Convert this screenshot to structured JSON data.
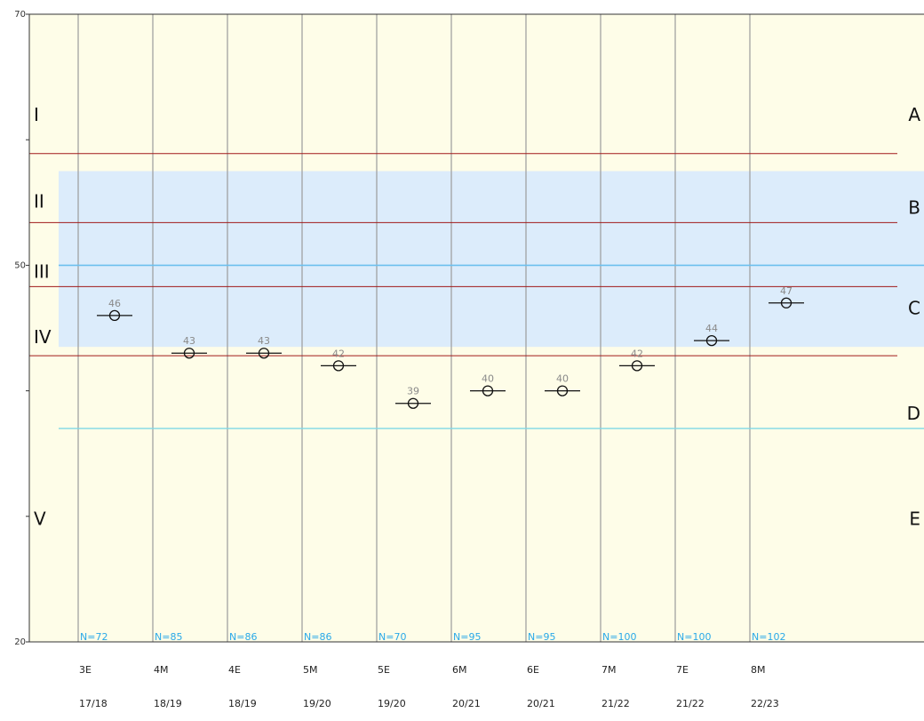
{
  "chart_data": {
    "type": "scatter",
    "title": "",
    "xlabel": "",
    "ylabel": "",
    "ylim": [
      20,
      70
    ],
    "y_ticks": [
      20,
      50,
      70
    ],
    "grid": "vertical lines between categories",
    "categories": [
      {
        "grade": "3E",
        "year": "17/18",
        "n": "N=72"
      },
      {
        "grade": "4M",
        "year": "18/19",
        "n": "N=85"
      },
      {
        "grade": "4E",
        "year": "18/19",
        "n": "N=86"
      },
      {
        "grade": "5M",
        "year": "19/20",
        "n": "N=86"
      },
      {
        "grade": "5E",
        "year": "19/20",
        "n": "N=70"
      },
      {
        "grade": "6M",
        "year": "20/21",
        "n": "N=95"
      },
      {
        "grade": "6E",
        "year": "20/21",
        "n": "N=95"
      },
      {
        "grade": "7M",
        "year": "21/22",
        "n": "N=100"
      },
      {
        "grade": "7E",
        "year": "21/22",
        "n": "N=100"
      },
      {
        "grade": "8M",
        "year": "22/23",
        "n": "N=102"
      }
    ],
    "values": [
      46,
      43,
      43,
      42,
      39,
      40,
      40,
      42,
      44,
      47
    ],
    "level_boundaries": [
      58.9,
      53.4,
      48.3,
      42.8
    ],
    "roman_levels": [
      {
        "label": "I",
        "y": 62
      },
      {
        "label": "II",
        "y": 55.1
      },
      {
        "label": "III",
        "y": 49.5
      },
      {
        "label": "IV",
        "y": 44.3
      },
      {
        "label": "V",
        "y": 29.8
      }
    ],
    "letter_levels": [
      {
        "label": "A",
        "y": 62
      },
      {
        "label": "B",
        "y": 54.6
      },
      {
        "label": "C",
        "y": 46.6
      },
      {
        "label": "D",
        "y": 38.2
      },
      {
        "label": "E",
        "y": 29.8
      }
    ],
    "reference_band": [
      43.5,
      57.5
    ],
    "reference_mean": 50,
    "reference_low": 37,
    "colors": {
      "background": "#fefde8",
      "band": "#dcecfb",
      "mean_line": "#6cc0ee",
      "low_line": "#7fd8e6",
      "boundary": "#a11a1a",
      "grid": "#9b9b9b",
      "n_label": "#2aa9e8"
    }
  }
}
